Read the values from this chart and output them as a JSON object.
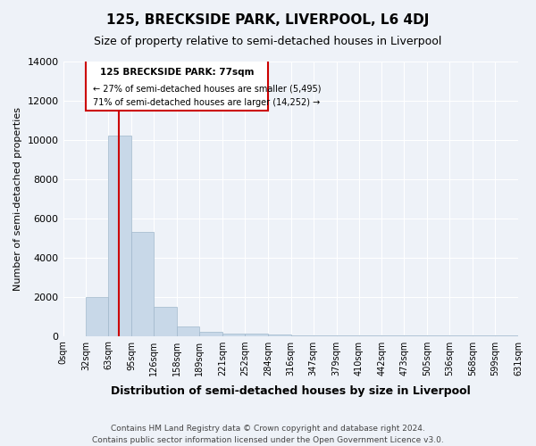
{
  "title": "125, BRECKSIDE PARK, LIVERPOOL, L6 4DJ",
  "subtitle": "Size of property relative to semi-detached houses in Liverpool",
  "xlabel": "Distribution of semi-detached houses by size in Liverpool",
  "ylabel": "Number of semi-detached properties",
  "footnote1": "Contains HM Land Registry data © Crown copyright and database right 2024.",
  "footnote2": "Contains public sector information licensed under the Open Government Licence v3.0.",
  "annotation_line1": "125 BRECKSIDE PARK: 77sqm",
  "annotation_line2": "← 27% of semi-detached houses are smaller (5,495)",
  "annotation_line3": "71% of semi-detached houses are larger (14,252) →",
  "bar_color": "#c8d8e8",
  "bar_edge_color": "#a0b8cc",
  "highlight_bar_color": "#c8d8e8",
  "red_line_color": "#cc0000",
  "annotation_box_color": "#cc0000",
  "background_color": "#eef2f8",
  "ylim": [
    0,
    14000
  ],
  "bin_edges": [
    0,
    32,
    63,
    95,
    126,
    158,
    189,
    221,
    252,
    284,
    316,
    347,
    379,
    410,
    442,
    473,
    505,
    536,
    568,
    599,
    631
  ],
  "bin_labels": [
    "0sqm",
    "32sqm",
    "63sqm",
    "95sqm",
    "126sqm",
    "158sqm",
    "189sqm",
    "221sqm",
    "252sqm",
    "284sqm",
    "316sqm",
    "347sqm",
    "379sqm",
    "410sqm",
    "442sqm",
    "473sqm",
    "505sqm",
    "536sqm",
    "568sqm",
    "599sqm",
    "631sqm"
  ],
  "bar_heights": [
    0,
    1980,
    10200,
    5300,
    1500,
    500,
    200,
    100,
    100,
    50,
    20,
    10,
    5,
    5,
    5,
    5,
    3,
    3,
    2,
    2
  ],
  "property_sqm": 77,
  "property_bin_index": 2
}
